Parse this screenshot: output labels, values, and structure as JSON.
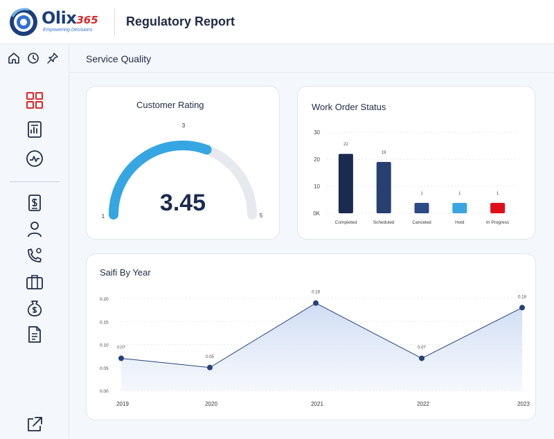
{
  "app": {
    "logo_text": "Olix",
    "logo_number": "365",
    "logo_tagline": "Empowering Decisions",
    "page_title": "Regulatory Report"
  },
  "subheader": {
    "title": "Service Quality"
  },
  "colors": {
    "primary": "#1c3f7a",
    "accent_red": "#e02424",
    "gauge_fill": "#35a6e2",
    "gauge_track": "#e6e9ee",
    "line": "#25417a",
    "area": "#dfe8f7"
  },
  "sidebar": {
    "top_icons": [
      "home-icon",
      "history-icon",
      "pin-icon"
    ],
    "items": [
      {
        "icon": "dashboard-grid-icon",
        "active": true
      },
      {
        "icon": "report-icon",
        "active": false
      },
      {
        "icon": "activity-icon",
        "active": false
      },
      {
        "icon": "invoice-icon",
        "active": false
      },
      {
        "icon": "user-icon",
        "active": false
      },
      {
        "icon": "phone-contact-icon",
        "active": false
      },
      {
        "icon": "briefcase-icon",
        "active": false
      },
      {
        "icon": "money-bag-icon",
        "active": false
      },
      {
        "icon": "document-icon",
        "active": false
      }
    ],
    "bottom_icon": "external-link-icon"
  },
  "customer_rating": {
    "title": "Customer Rating",
    "value_label": "3.45",
    "min_label": "1",
    "max_label": "5",
    "mark_label": "3",
    "min": 1,
    "max": 5,
    "value": 3.45
  },
  "work_order": {
    "title": "Work Order Status",
    "chart_data": {
      "type": "bar",
      "categories": [
        "Completed",
        "Scheduled",
        "Canceled",
        "Hold",
        "In Progress"
      ],
      "values": [
        22,
        19,
        1,
        1,
        1
      ],
      "value_labels": [
        "22",
        "19",
        "1",
        "1",
        "1"
      ],
      "colors": [
        "#1b2b4f",
        "#283f72",
        "#2b4a86",
        "#3aa6e0",
        "#e0101a"
      ],
      "y_ticks": [
        "0K",
        "10",
        "20",
        "30"
      ],
      "ylim": [
        0,
        30
      ],
      "grid": true
    }
  },
  "saifi": {
    "title": "Saifi By Year",
    "chart_data": {
      "type": "area",
      "x": [
        "2019",
        "2020",
        "2021",
        "2022",
        "2023"
      ],
      "values": [
        0.07,
        0.05,
        0.19,
        0.07,
        0.18
      ],
      "point_labels": [
        "0.07",
        "0.05",
        "0.19",
        "0.07",
        "0.18"
      ],
      "y_ticks": [
        "0.00",
        "0.05",
        "0.10",
        "0.15",
        "0.20"
      ],
      "ylim": [
        0,
        0.2
      ],
      "grid": true
    }
  }
}
